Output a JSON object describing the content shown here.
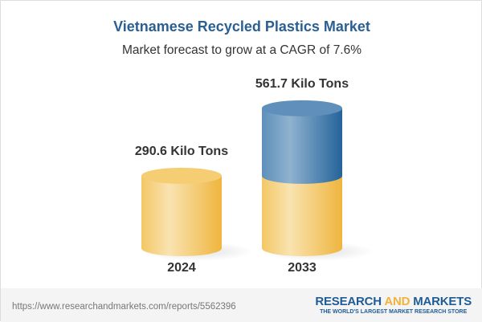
{
  "chart_data": {
    "type": "bar",
    "title": "Vietnamese Recycled Plastics Market",
    "subtitle": "Market forecast to grow at a CAGR of 7.6%",
    "categories": [
      "2024",
      "2033"
    ],
    "values": [
      290.6,
      561.7
    ],
    "unit": "Kilo Tons",
    "data_labels": [
      "290.6 Kilo Tons",
      "561.7 Kilo Tons"
    ],
    "colors": {
      "base": "#f2c458",
      "growth": "#2f6b9e"
    }
  },
  "footer": {
    "url": "https://www.researchandmarkets.com/reports/5562396",
    "logo_word1": "RESEARCH",
    "logo_word2": "AND",
    "logo_word3": "MARKETS",
    "logo_tagline": "THE WORLD'S LARGEST MARKET RESEARCH STORE"
  }
}
